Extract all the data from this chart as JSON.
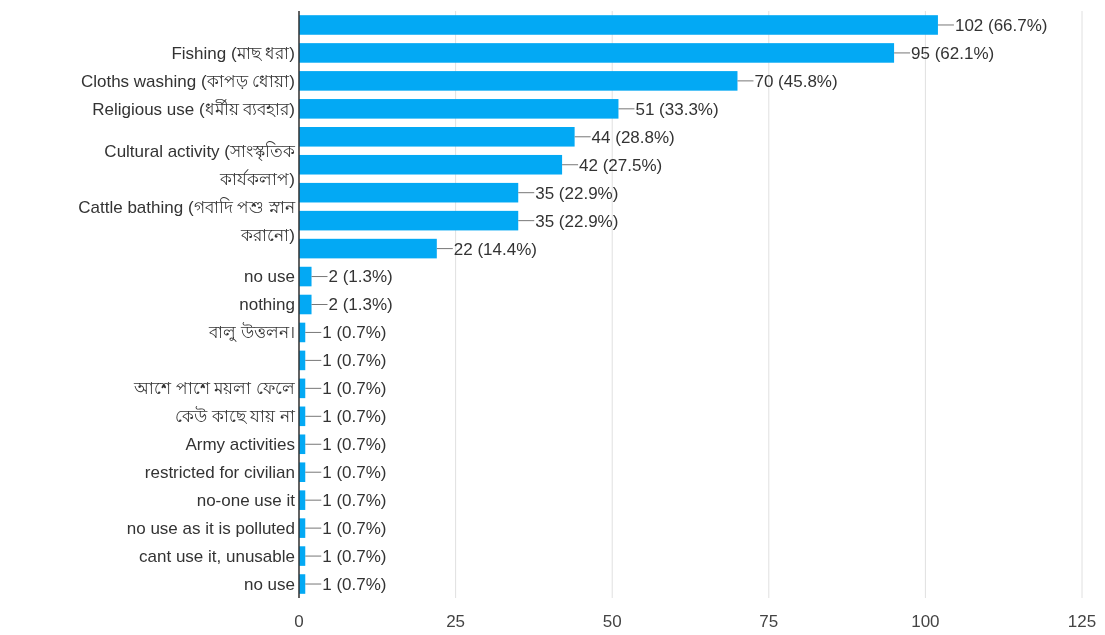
{
  "chart_data": {
    "type": "bar",
    "orientation": "horizontal",
    "categories": [
      null,
      "Fishing (মাছ ধরা)",
      "Cloths washing (কাপড় ধোয়া)",
      "Religious use (ধর্মীয় ব্যবহার)",
      null,
      "Cultural activity (সাংস্কৃতিক কার্যকলাপ)",
      null,
      "Cattle bathing (গবাদি পশু স্নান করানো)",
      null,
      "no use",
      "nothing",
      "বালু উত্তলন।",
      null,
      "আশে পাশে ময়লা ফেলে",
      "কেউ কাছে যায় না",
      "Army activities",
      "restricted for civilian",
      "no-one use it",
      "no use as it is polluted",
      "cant use it, unusable",
      "no use"
    ],
    "values": [
      102,
      95,
      70,
      51,
      44,
      42,
      35,
      35,
      22,
      2,
      2,
      1,
      1,
      1,
      1,
      1,
      1,
      1,
      1,
      1,
      1
    ],
    "value_labels": [
      "102 (66.7%)",
      "95 (62.1%)",
      "70 (45.8%)",
      "51 (33.3%)",
      "44 (28.8%)",
      "42 (27.5%)",
      "35 (22.9%)",
      "35 (22.9%)",
      "22 (14.4%)",
      "2 (1.3%)",
      "2 (1.3%)",
      "1 (0.7%)",
      "1 (0.7%)",
      "1 (0.7%)",
      "1 (0.7%)",
      "1 (0.7%)",
      "1 (0.7%)",
      "1 (0.7%)",
      "1 (0.7%)",
      "1 (0.7%)",
      "1 (0.7%)"
    ],
    "color": "#03a9f4",
    "xlim": [
      0,
      125
    ],
    "xticks": [
      0,
      25,
      50,
      75,
      100,
      125
    ],
    "grid": "x"
  }
}
